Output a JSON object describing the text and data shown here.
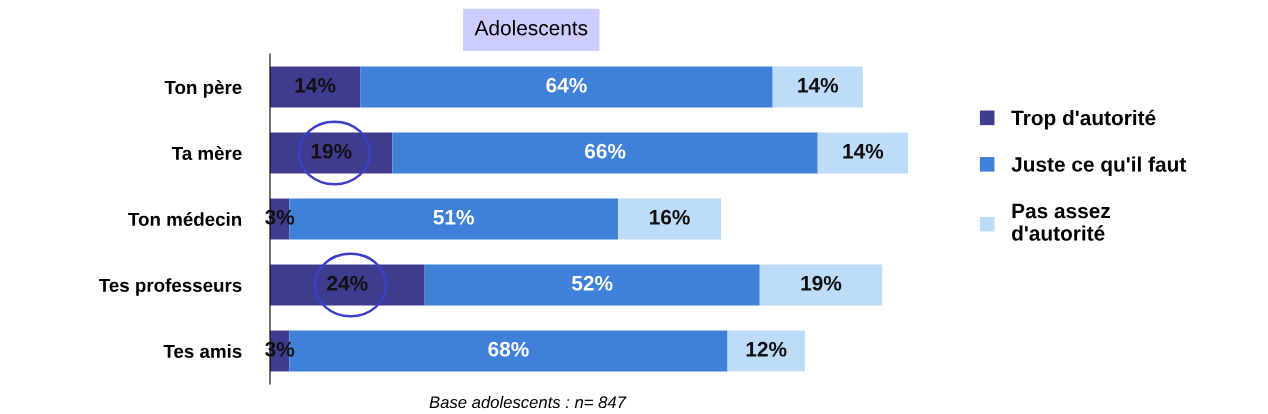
{
  "chart_data": {
    "type": "bar",
    "orientation": "horizontal",
    "stacked": true,
    "title": "Adolescents",
    "categories": [
      "Ton père",
      "Ta mère",
      "Ton médecin",
      "Tes professeurs",
      "Tes amis"
    ],
    "series": [
      {
        "name": "Trop d'autorité",
        "color": "#3f3c8f",
        "values": [
          14,
          19,
          3,
          24,
          3
        ],
        "value_labels": [
          "14%",
          "19%",
          "3%",
          "24%",
          "3%"
        ]
      },
      {
        "name": "Juste ce qu'il faut",
        "color": "#3f80d8",
        "values": [
          64,
          66,
          51,
          52,
          68
        ],
        "value_labels": [
          "64%",
          "66%",
          "51%",
          "52%",
          "68%"
        ]
      },
      {
        "name": "Pas assez\nd'autorité",
        "color": "#bcdcfa",
        "values": [
          14,
          14,
          16,
          19,
          12
        ],
        "value_labels": [
          "14%",
          "14%",
          "16%",
          "19%",
          "12%"
        ]
      }
    ],
    "tick_labels": "y",
    "legend": "right",
    "grid": false,
    "annotations": [
      "Base adolescents : n= 847"
    ]
  }
}
